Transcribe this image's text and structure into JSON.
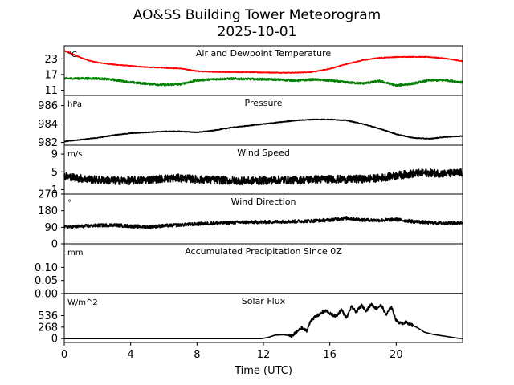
{
  "chart_data": {
    "type": "line",
    "title": "AO&SS Building Tower Meteorogram",
    "subtitle": "2025-10-01",
    "xlabel": "Time (UTC)",
    "xlim": [
      0,
      24
    ],
    "xticks": [
      0,
      4,
      8,
      12,
      16,
      20
    ],
    "panels": [
      {
        "title": "Air and Dewpoint Temperature",
        "unit": "°C",
        "ylim": [
          9,
          28
        ],
        "yticks": [
          11,
          17,
          23
        ],
        "series": [
          {
            "name": "Air Temperature",
            "color": "#ff0000",
            "x": [
              0,
              0.5,
              1,
              1.5,
              2,
              3,
              4,
              5,
              6,
              7,
              8,
              9,
              10,
              11,
              12,
              13,
              14,
              15,
              16,
              17,
              18,
              19,
              20,
              21,
              22,
              23,
              24
            ],
            "y": [
              26,
              24.8,
              23.5,
              22.3,
              21.6,
              20.8,
              20.3,
              19.8,
              19.6,
              19.3,
              18.3,
              18,
              17.9,
              17.9,
              17.8,
              17.7,
              17.7,
              18,
              19.2,
              21,
              22.5,
              23.4,
              23.7,
              23.8,
              23.7,
              23.1,
              22.1
            ],
            "noise": 0.15
          },
          {
            "name": "Dewpoint Temperature",
            "color": "#008000",
            "x": [
              0,
              1,
              2,
              3,
              4,
              5,
              6,
              7,
              8,
              9,
              10,
              11,
              12,
              13,
              14,
              15,
              16,
              17,
              18,
              19,
              20,
              21,
              22,
              23,
              24
            ],
            "y": [
              15.5,
              15.5,
              15.5,
              15,
              14,
              13.5,
              13,
              13.3,
              14.8,
              15.2,
              15.4,
              15.3,
              15.2,
              15,
              14.7,
              15.1,
              14.7,
              14,
              13.6,
              14.5,
              12.8,
              13.5,
              14.8,
              14.8,
              14
            ],
            "noise": 0.4
          }
        ]
      },
      {
        "title": "Pressure",
        "unit": "hPa",
        "ylim": [
          981.7,
          987.1
        ],
        "yticks": [
          982,
          984,
          986
        ],
        "yticklabels": [
          "982",
          "984",
          "986"
        ],
        "series": [
          {
            "name": "Pressure",
            "color": "#000000",
            "x": [
              0,
              1,
              2,
              3,
              4,
              5,
              6,
              7,
              8,
              9,
              10,
              11,
              12,
              13,
              14,
              15,
              16,
              17,
              18,
              19,
              20,
              21,
              22,
              23,
              24
            ],
            "y": [
              982.1,
              982.3,
              982.5,
              982.8,
              983,
              983.1,
              983.2,
              983.2,
              983.1,
              983.3,
              983.6,
              983.8,
              984,
              984.2,
              984.4,
              984.5,
              984.5,
              984.4,
              984,
              983.5,
              982.9,
              982.5,
              982.4,
              982.6,
              982.7
            ],
            "noise": 0.04
          }
        ]
      },
      {
        "title": "Wind Speed",
        "unit": "m/s",
        "ylim": [
          0,
          11
        ],
        "yticks": [
          1,
          5,
          9
        ],
        "series": [
          {
            "name": "Wind Speed",
            "color": "#000000",
            "x": [
              0,
              1,
              2,
              3,
              4,
              5,
              6,
              7,
              8,
              9,
              10,
              11,
              12,
              13,
              14,
              15,
              16,
              17,
              18,
              19,
              20,
              21,
              22,
              23,
              24
            ],
            "y": [
              4,
              3.5,
              3.2,
              3,
              3,
              3.2,
              3.5,
              3.6,
              3.3,
              3.2,
              3,
              3,
              3,
              3.2,
              3.1,
              3.3,
              3.4,
              3.3,
              3.4,
              3.6,
              4.2,
              4.6,
              4.8,
              4.6,
              4.8
            ],
            "noise": 0.9
          }
        ]
      },
      {
        "title": "Wind Direction",
        "unit": "°",
        "ylim": [
          0,
          270
        ],
        "yticks": [
          0,
          90,
          180,
          270
        ],
        "series": [
          {
            "name": "Wind Direction",
            "color": "#000000",
            "x": [
              0,
              1,
              2,
              3,
              4,
              5,
              6,
              7,
              8,
              9,
              10,
              11,
              12,
              13,
              14,
              15,
              16,
              17,
              18,
              19,
              20,
              21,
              22,
              23,
              24
            ],
            "y": [
              92,
              95,
              100,
              102,
              96,
              92,
              98,
              103,
              108,
              112,
              115,
              118,
              118,
              120,
              122,
              125,
              130,
              140,
              130,
              128,
              132,
              122,
              115,
              112,
              115
            ],
            "noise": 9
          }
        ]
      },
      {
        "title": "Accumulated Precipitation Since 0Z",
        "unit": "mm",
        "ylim": [
          0,
          0.19
        ],
        "yticks": [
          0,
          0.05,
          0.1
        ],
        "yticklabels": [
          "0.00",
          "0.05",
          "0.10"
        ],
        "series": [
          {
            "name": "Accumulated Precipitation",
            "color": "#000000",
            "x": [
              0,
              24
            ],
            "y": [
              0,
              0
            ],
            "noise": 0
          }
        ]
      },
      {
        "title": "Solar Flux",
        "unit": "W/m^2",
        "ylim": [
          -90,
          1050
        ],
        "yticks": [
          0,
          268,
          536
        ],
        "series": [
          {
            "name": "Solar Flux",
            "color": "#000000",
            "x": [
              0,
              11.9,
              12.3,
              12.7,
              13.2,
              13.7,
              14,
              14.3,
              14.6,
              14.9,
              15.2,
              15.5,
              15.8,
              16.1,
              16.4,
              16.7,
              17,
              17.3,
              17.6,
              17.9,
              18.2,
              18.5,
              18.8,
              19.1,
              19.4,
              19.7,
              20,
              20.3,
              20.6,
              20.9,
              21.3,
              21.7,
              22.2,
              22.7,
              23.2,
              23.7,
              24
            ],
            "y": [
              0,
              0,
              30,
              80,
              90,
              60,
              150,
              250,
              180,
              450,
              520,
              600,
              650,
              560,
              520,
              680,
              480,
              740,
              620,
              780,
              650,
              800,
              700,
              780,
              550,
              750,
              420,
              350,
              380,
              330,
              250,
              150,
              100,
              70,
              40,
              10,
              0
            ],
            "noise": 35,
            "noise_range": [
              13.5,
              21
            ]
          }
        ]
      }
    ]
  }
}
